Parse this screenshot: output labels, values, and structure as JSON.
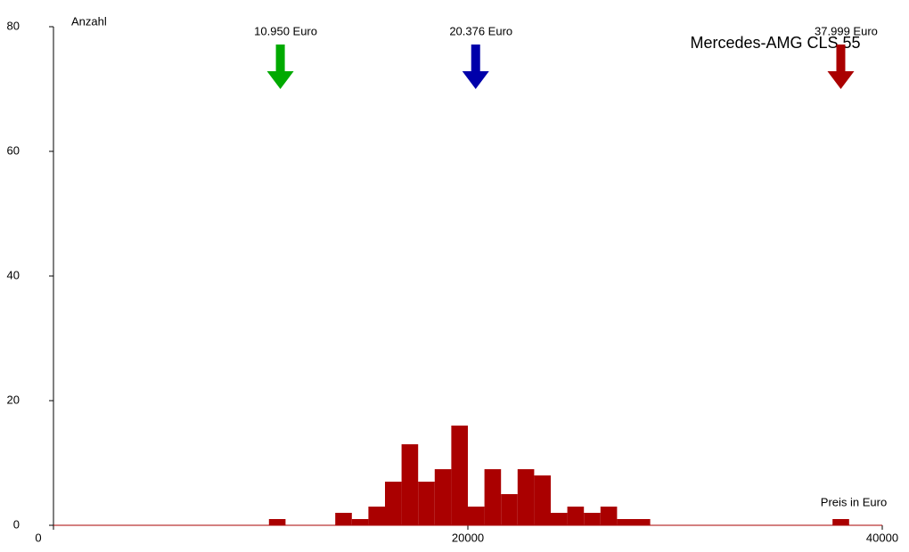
{
  "chart_data": {
    "type": "histogram",
    "title": "Mercedes-AMG CLS 55",
    "x_label": "Preis in Euro",
    "y_label": "Anzahl",
    "bins": [
      10400,
      11200,
      12000,
      12800,
      13600,
      14400,
      15200,
      16000,
      16800,
      17600,
      18400,
      19200,
      20000,
      20800,
      21600,
      22400,
      23200,
      24000,
      24800,
      25600,
      26400,
      27200,
      28000,
      28800,
      29600,
      30400,
      31200,
      32000,
      32800,
      33600,
      34400,
      35200,
      36000,
      36800,
      37600,
      38400
    ],
    "values": [
      1,
      0,
      0,
      0,
      2,
      1,
      3,
      7,
      13,
      7,
      9,
      16,
      3,
      9,
      5,
      9,
      8,
      2,
      3,
      2,
      3,
      1,
      1,
      0,
      0,
      0,
      0,
      0,
      0,
      0,
      0,
      0,
      0,
      0,
      1
    ],
    "color": "#aa0000",
    "xlim": [
      0,
      40000
    ],
    "xticks": [
      0,
      20000,
      40000
    ],
    "ylim": [
      0,
      80
    ],
    "yticks": [
      0,
      20,
      40,
      60,
      80
    ],
    "markers": [
      {
        "value": 10950,
        "label": "10.950 Euro",
        "color": "#00aa00"
      },
      {
        "value": 20376,
        "label": "20.376 Euro",
        "color": "#0000aa"
      },
      {
        "value": 37999,
        "label": "37.999 Euro",
        "color": "#aa0000"
      }
    ]
  }
}
